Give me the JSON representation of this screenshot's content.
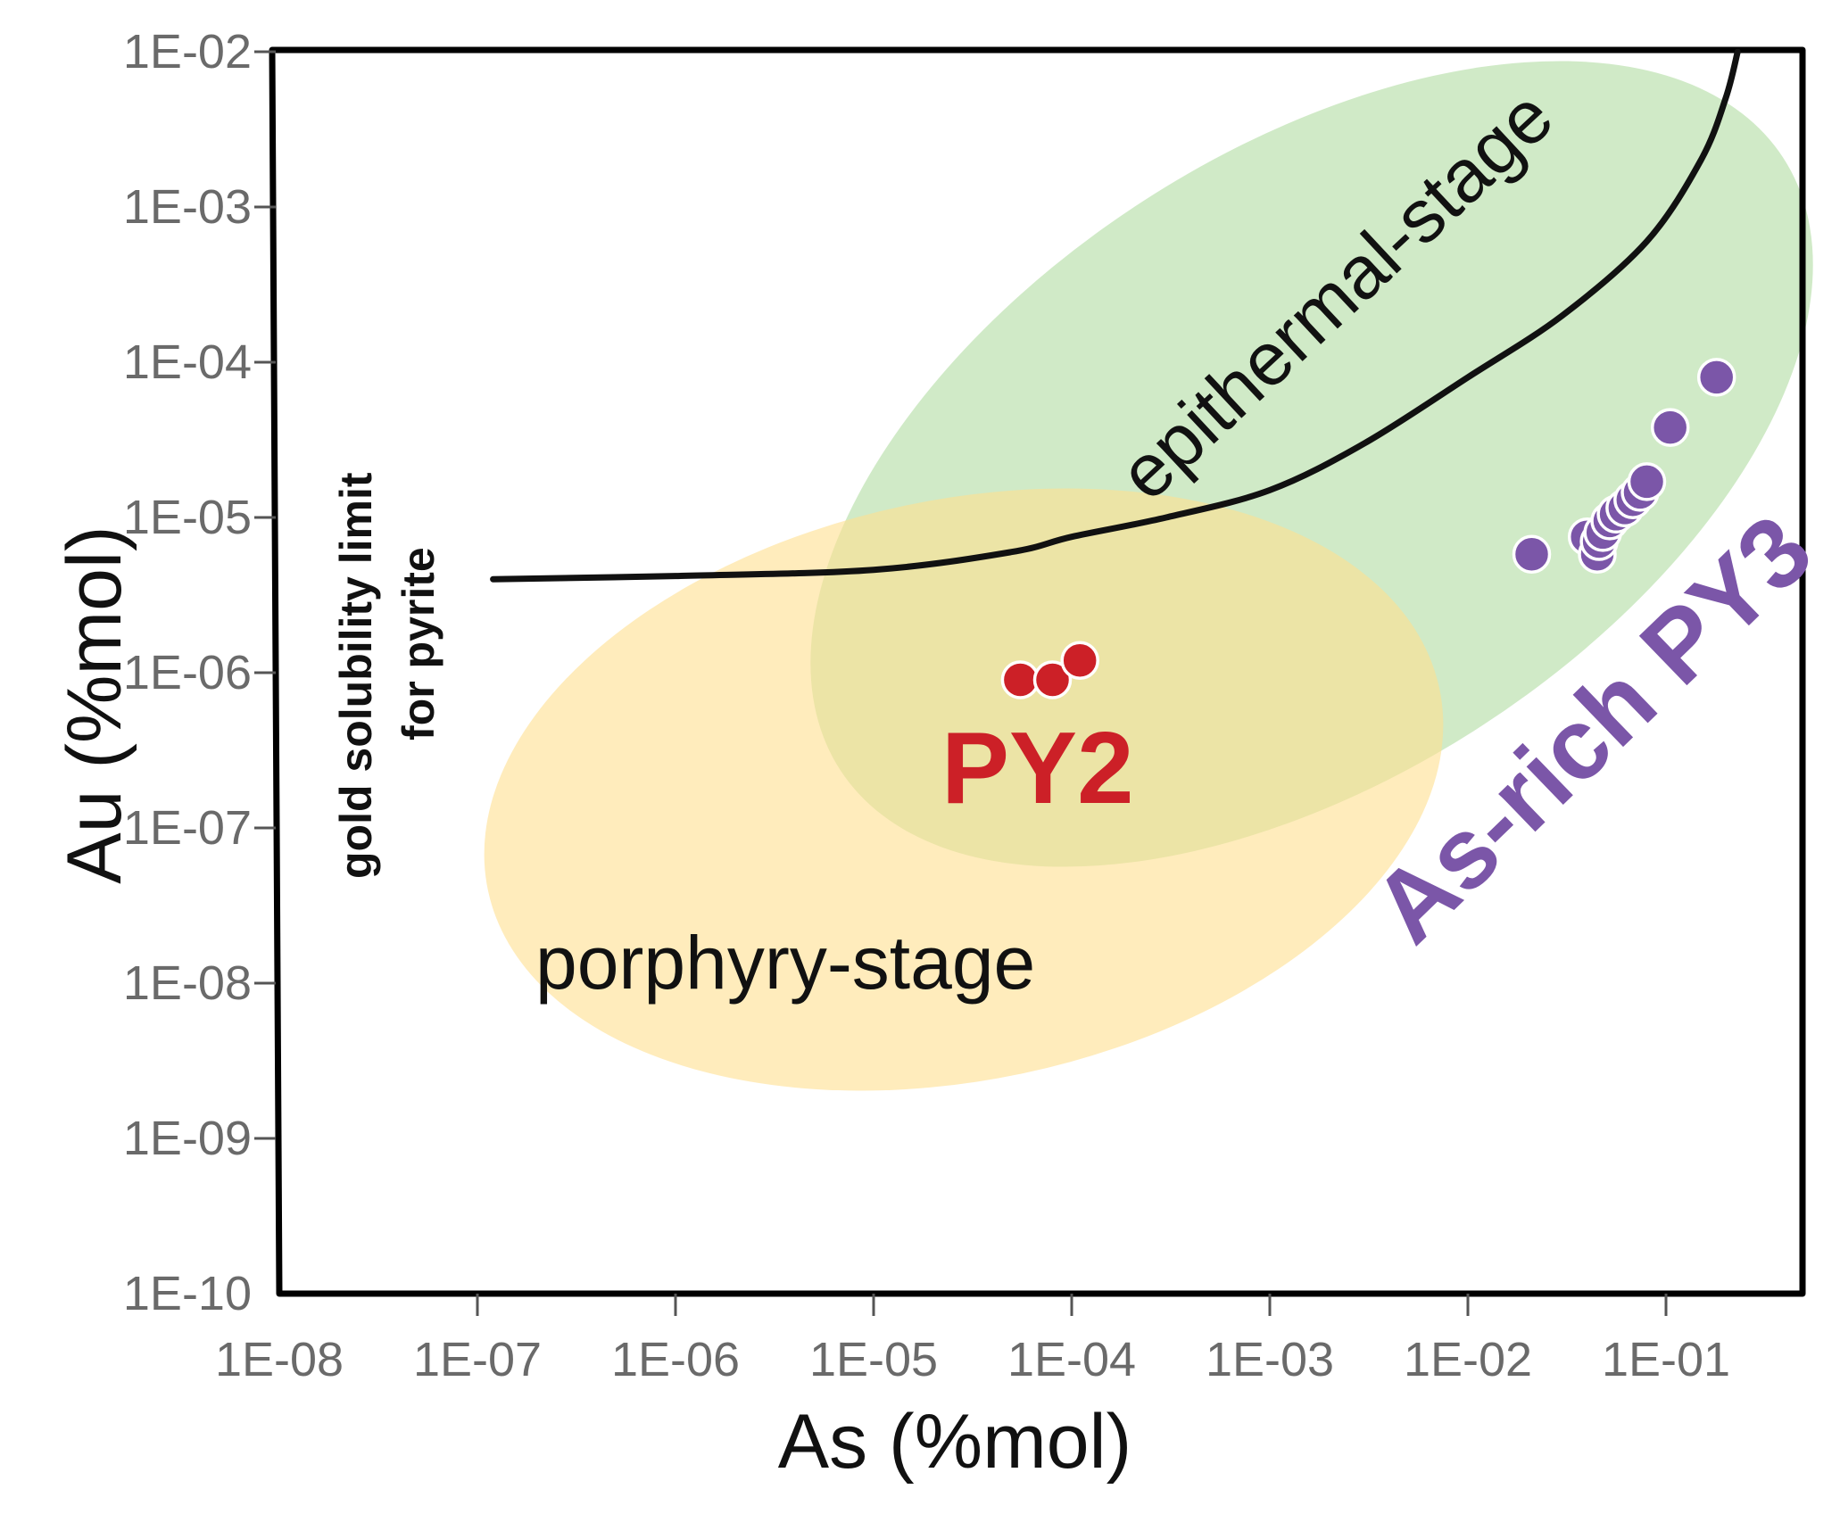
{
  "chart_data": {
    "type": "scatter",
    "xlabel": "As (%mol)",
    "ylabel": "Au (%mol)",
    "x_scale": "log",
    "y_scale": "log",
    "xlim": [
      1e-08,
      0.55
    ],
    "ylim": [
      1e-10,
      0.01
    ],
    "x_ticks": [
      "1E-08",
      "1E-07",
      "1E-06",
      "1E-05",
      "1E-04",
      "1E-03",
      "1E-02",
      "1E-01"
    ],
    "y_ticks": [
      "1E-10",
      "1E-09",
      "1E-08",
      "1E-07",
      "1E-06",
      "1E-05",
      "1E-04",
      "1E-03",
      "1E-02"
    ],
    "grid": false,
    "colors": {
      "py2": "#cc2027",
      "py3": "#7b56a8",
      "porphyry": "#ffe6a3",
      "epithermal": "#b9e0ad",
      "curve": "#111111"
    },
    "regions": [
      {
        "label": "porphyry-stage"
      },
      {
        "label": "epithermal-stage"
      }
    ],
    "annotations": {
      "curve_line1": "gold solubility limit",
      "curve_line2": "for pyrite"
    },
    "solubility_curve": [
      {
        "x": 1.2e-07,
        "y": 4e-06
      },
      {
        "x": 1e-06,
        "y": 4.2e-06
      },
      {
        "x": 1e-05,
        "y": 4.6e-06
      },
      {
        "x": 5e-05,
        "y": 6e-06
      },
      {
        "x": 0.0001,
        "y": 7.5e-06
      },
      {
        "x": 0.0003,
        "y": 1e-05
      },
      {
        "x": 0.001,
        "y": 1.5e-05
      },
      {
        "x": 0.003,
        "y": 3e-05
      },
      {
        "x": 0.01,
        "y": 8e-05
      },
      {
        "x": 0.03,
        "y": 0.0002
      },
      {
        "x": 0.08,
        "y": 0.0006
      },
      {
        "x": 0.15,
        "y": 0.002
      },
      {
        "x": 0.2,
        "y": 0.005
      },
      {
        "x": 0.23,
        "y": 0.01
      }
    ],
    "series": [
      {
        "name": "PY2",
        "points": [
          {
            "x": 5.5e-05,
            "y": 9e-07
          },
          {
            "x": 8e-05,
            "y": 9e-07
          },
          {
            "x": 0.00011,
            "y": 1.2e-06
          }
        ]
      },
      {
        "name": "As-rich PY3",
        "points": [
          {
            "x": 0.021,
            "y": 5.8e-06
          },
          {
            "x": 0.04,
            "y": 7.5e-06
          },
          {
            "x": 0.045,
            "y": 5.8e-06
          },
          {
            "x": 0.046,
            "y": 7e-06
          },
          {
            "x": 0.048,
            "y": 8e-06
          },
          {
            "x": 0.052,
            "y": 9.5e-06
          },
          {
            "x": 0.056,
            "y": 1.05e-05
          },
          {
            "x": 0.062,
            "y": 1.15e-05
          },
          {
            "x": 0.068,
            "y": 1.3e-05
          },
          {
            "x": 0.074,
            "y": 1.45e-05
          },
          {
            "x": 0.08,
            "y": 1.7e-05
          },
          {
            "x": 0.105,
            "y": 3.8e-05
          },
          {
            "x": 0.18,
            "y": 8e-05
          }
        ]
      }
    ]
  }
}
